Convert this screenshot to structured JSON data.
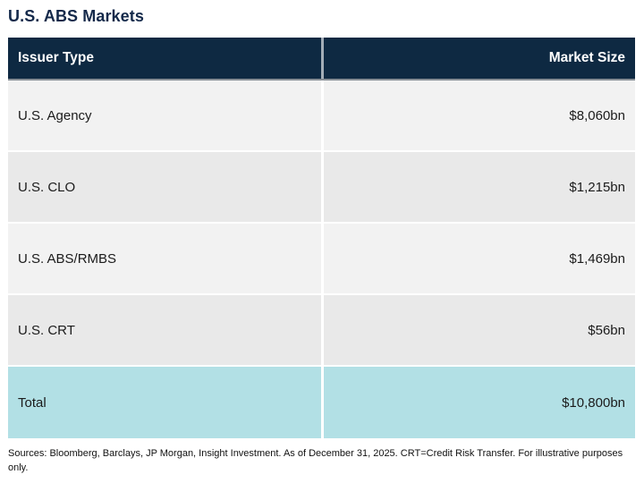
{
  "title": "U.S. ABS Markets",
  "table": {
    "columns": {
      "issuer": "Issuer Type",
      "size": "Market Size"
    },
    "rows": [
      {
        "issuer": "U.S. Agency",
        "size": "$8,060bn"
      },
      {
        "issuer": "U.S. CLO",
        "size": "$1,215bn"
      },
      {
        "issuer": "U.S. ABS/RMBS",
        "size": "$1,469bn"
      },
      {
        "issuer": "U.S. CRT",
        "size": "$56bn"
      }
    ],
    "total": {
      "issuer": "Total",
      "size": "$10,800bn"
    }
  },
  "footnote": "Sources: Bloomberg, Barclays, JP Morgan, Insight Investment. As of December 31, 2025.  CRT=Credit Risk Transfer. For illustrative purposes only.",
  "colors": {
    "header_bg": "#0e2942",
    "title_text": "#14294a",
    "row_shade_dark": "#e9e9e9",
    "row_shade_light": "#f2f2f2",
    "total_bg": "#b2e0e5",
    "header_text": "#ffffff",
    "body_text": "#1b1b1b"
  },
  "chart_data": {
    "type": "table",
    "title": "U.S. ABS Markets",
    "columns": [
      "Issuer Type",
      "Market Size"
    ],
    "rows": [
      [
        "U.S. Agency",
        "$8,060bn"
      ],
      [
        "U.S. CLO",
        "$1,215bn"
      ],
      [
        "U.S. ABS/RMBS",
        "$1,469bn"
      ],
      [
        "U.S. CRT",
        "$56bn"
      ],
      [
        "Total",
        "$10,800bn"
      ]
    ],
    "values_bn_usd": {
      "U.S. Agency": 8060,
      "U.S. CLO": 1215,
      "U.S. ABS/RMBS": 1469,
      "U.S. CRT": 56,
      "Total": 10800
    },
    "footnote": "Sources: Bloomberg, Barclays, JP Morgan, Insight Investment. As of December 31, 2025.  CRT=Credit Risk Transfer. For illustrative purposes only."
  }
}
